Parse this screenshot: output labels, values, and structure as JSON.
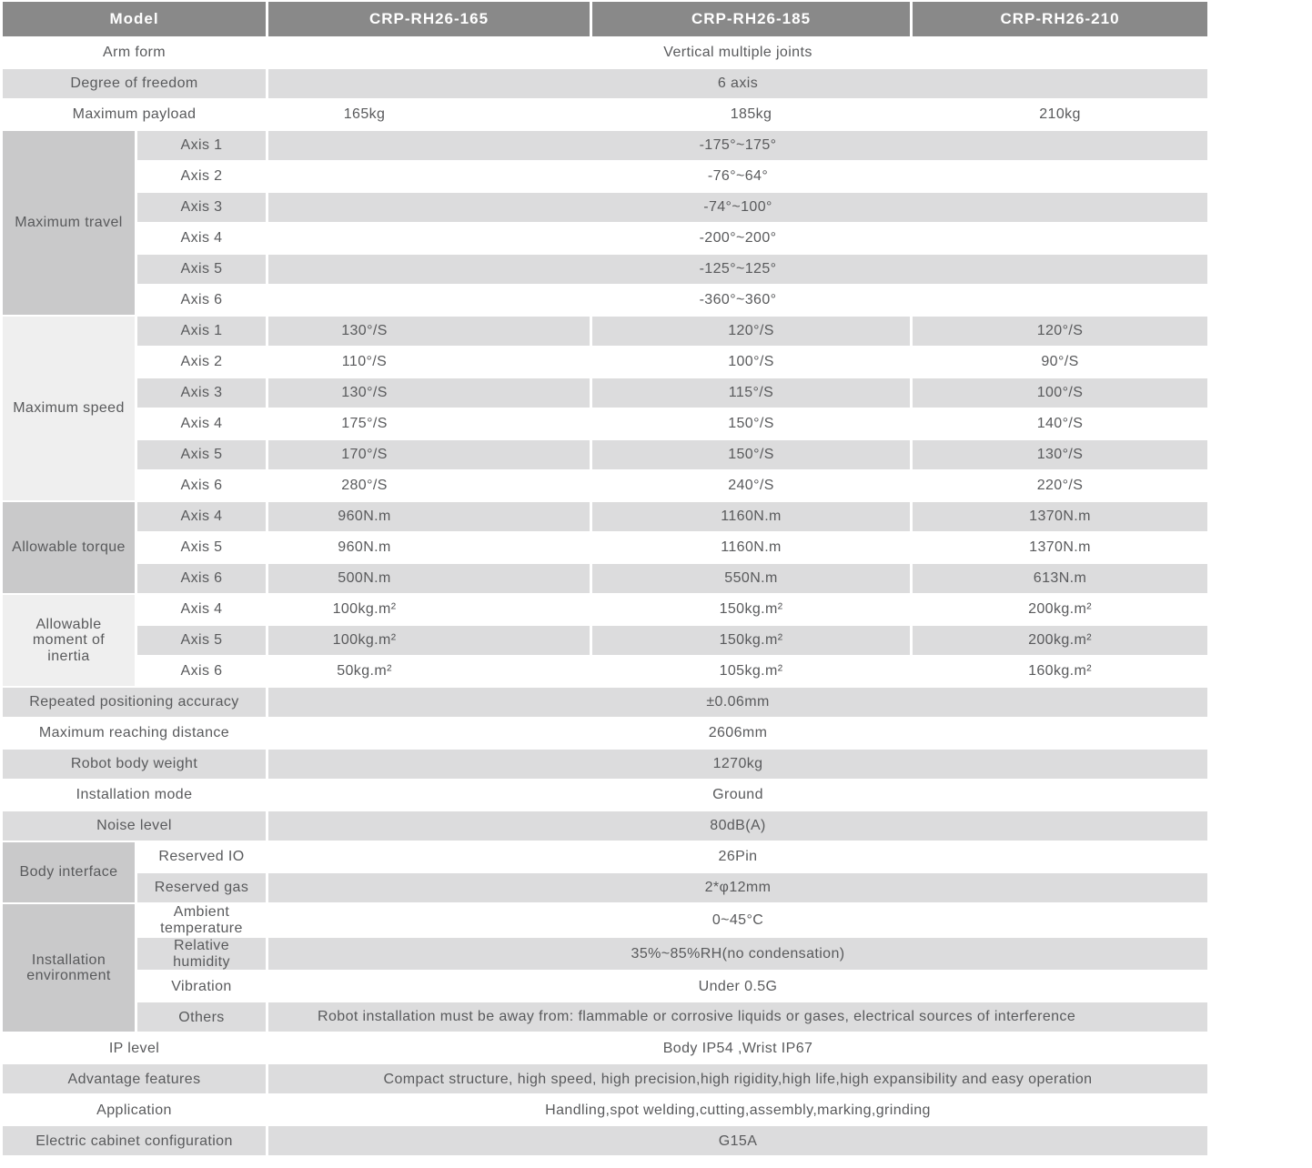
{
  "colors": {
    "header_bg": "#898989",
    "header_text": "#ffffff",
    "stripe_row": "#dcdcdd",
    "plain_row": "#ffffff",
    "group_dark": "#c9c9ca",
    "group_light": "#efefef",
    "body_text": "#595a5c"
  },
  "header": {
    "model_label": "Model",
    "models": [
      "CRP-RH26-165",
      "CRP-RH26-185",
      "CRP-RH26-210"
    ]
  },
  "table": {
    "rows": [
      {
        "label": "Arm form",
        "values": [
          "Vertical multiple joints"
        ]
      },
      {
        "label": "Degree of freedom",
        "values": [
          "6 axis"
        ]
      },
      {
        "label": "Maximum payload",
        "values": [
          "165kg",
          "185kg",
          "210kg"
        ]
      },
      {
        "group": {
          "label": "Maximum travel",
          "span": 6,
          "shade": "dark"
        },
        "label": "Axis 1",
        "values": [
          "-175°~175°"
        ]
      },
      {
        "label": "Axis 2",
        "values": [
          "-76°~64°"
        ]
      },
      {
        "label": "Axis 3",
        "values": [
          "-74°~100°"
        ]
      },
      {
        "label": "Axis 4",
        "values": [
          "-200°~200°"
        ]
      },
      {
        "label": "Axis 5",
        "values": [
          "-125°~125°"
        ]
      },
      {
        "label": "Axis 6",
        "values": [
          "-360°~360°"
        ]
      },
      {
        "group": {
          "label": "Maximum speed",
          "span": 6,
          "shade": "light"
        },
        "label": "Axis 1",
        "values": [
          "130°/S",
          "120°/S",
          "120°/S"
        ]
      },
      {
        "label": "Axis 2",
        "values": [
          "110°/S",
          "100°/S",
          "90°/S"
        ]
      },
      {
        "label": "Axis 3",
        "values": [
          "130°/S",
          "115°/S",
          "100°/S"
        ]
      },
      {
        "label": "Axis 4",
        "values": [
          "175°/S",
          "150°/S",
          "140°/S"
        ]
      },
      {
        "label": "Axis 5",
        "values": [
          "170°/S",
          "150°/S",
          "130°/S"
        ]
      },
      {
        "label": "Axis 6",
        "values": [
          "280°/S",
          "240°/S",
          "220°/S"
        ]
      },
      {
        "group": {
          "label": "Allowable torque",
          "span": 3,
          "shade": "dark"
        },
        "label": "Axis 4",
        "values": [
          "960N.m",
          "1160N.m",
          "1370N.m"
        ]
      },
      {
        "label": "Axis 5",
        "values": [
          "960N.m",
          "1160N.m",
          "1370N.m"
        ]
      },
      {
        "label": "Axis 6",
        "values": [
          "500N.m",
          "550N.m",
          "613N.m"
        ]
      },
      {
        "group": {
          "label": "Allowable moment of inertia",
          "span": 3,
          "shade": "light"
        },
        "label": "Axis 4",
        "values": [
          "100kg.m²",
          "150kg.m²",
          "200kg.m²"
        ]
      },
      {
        "label": "Axis 5",
        "values": [
          "100kg.m²",
          "150kg.m²",
          "200kg.m²"
        ]
      },
      {
        "label": "Axis 6",
        "values": [
          "50kg.m²",
          "105kg.m²",
          "160kg.m²"
        ]
      },
      {
        "label": "Repeated positioning accuracy",
        "values": [
          "±0.06mm"
        ]
      },
      {
        "label": "Maximum reaching distance",
        "values": [
          "2606mm"
        ]
      },
      {
        "label": "Robot body weight",
        "values": [
          "1270kg"
        ]
      },
      {
        "label": "Installation mode",
        "values": [
          "Ground"
        ]
      },
      {
        "label": "Noise level",
        "values": [
          "80dB(A)"
        ]
      },
      {
        "group": {
          "label": "Body interface",
          "span": 2,
          "shade": "dark"
        },
        "label": "Reserved IO",
        "values": [
          "26Pin"
        ]
      },
      {
        "label": "Reserved gas",
        "values": [
          "2*φ12mm"
        ]
      },
      {
        "group": {
          "label": "Installation environment",
          "span": 4,
          "shade": "dark"
        },
        "label": "Ambient temperature",
        "values": [
          "0~45°C"
        ]
      },
      {
        "label": "Relative humidity",
        "values": [
          "35%~85%RH(no condensation)"
        ]
      },
      {
        "label": "Vibration",
        "values": [
          "Under 0.5G"
        ]
      },
      {
        "label": "Others",
        "align": "left",
        "values": [
          "Robot installation must be away from: flammable or corrosive liquids or gases, electrical sources of interference"
        ]
      },
      {
        "label": "IP level",
        "values": [
          "Body IP54 ,Wrist IP67"
        ]
      },
      {
        "label": "Advantage features",
        "values": [
          "Compact structure, high speed, high precision,high rigidity,high life,high expansibility and easy operation"
        ]
      },
      {
        "label": "Application",
        "values": [
          "Handling,spot welding,cutting,assembly,marking,grinding"
        ]
      },
      {
        "label": "Electric cabinet configuration",
        "values": [
          "G15A"
        ]
      }
    ]
  }
}
